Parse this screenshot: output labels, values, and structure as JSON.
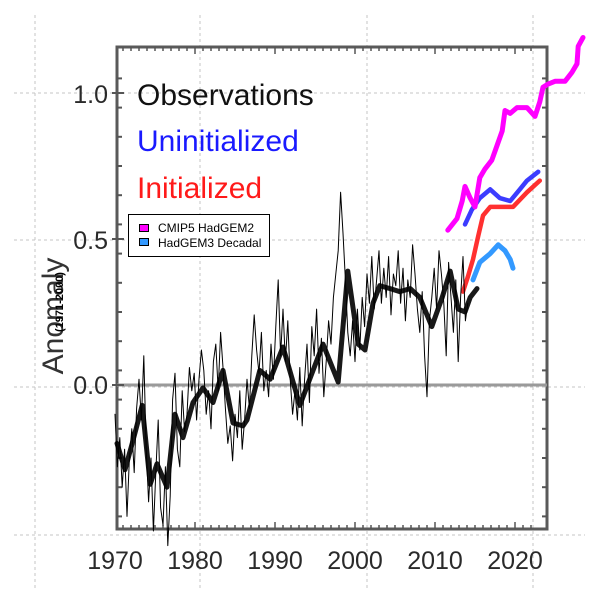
{
  "chart_data": {
    "type": "line",
    "title": "",
    "xlabel": "",
    "ylabel": "Anomaly",
    "ylabel_sub": "(1971-2000)",
    "xlim": [
      1970,
      2022.1
    ],
    "ylim": [
      -0.5,
      1.16
    ],
    "x_ticks": [
      1970,
      1980,
      1990,
      2000,
      2010,
      2020
    ],
    "x_tick_labels": [
      "1970",
      "1980",
      "1990",
      "2000",
      "2010",
      "2020"
    ],
    "y_ticks": [
      0.0,
      0.5,
      1.0
    ],
    "y_tick_labels": [
      "0.0",
      "0.5",
      "1.0"
    ],
    "zero_line": true,
    "grid": true,
    "legend_top": [
      {
        "label": "Observations",
        "color": "#000000"
      },
      {
        "label": "Uninitialized",
        "color": "#1a1aff"
      },
      {
        "label": "Initialized",
        "color": "#ff1a1a"
      }
    ],
    "legend_box": {
      "position": "upper-left",
      "entries": [
        {
          "label": "CMIP5 HadGEM2",
          "color": "#ff00ff"
        },
        {
          "label": "HadGEM3 Decadal",
          "color": "#3399ff"
        }
      ]
    },
    "series": [
      {
        "name": "Observations (monthly)",
        "color": "#000000",
        "x": [
          1970.0,
          1970.3,
          1970.6,
          1970.9,
          1971.2,
          1971.5,
          1971.8,
          1972.1,
          1972.4,
          1972.7,
          1973.0,
          1973.3,
          1973.6,
          1973.9,
          1974.2,
          1974.5,
          1974.8,
          1975.1,
          1975.4,
          1975.7,
          1976.0,
          1976.3,
          1976.6,
          1976.9,
          1977.2,
          1977.5,
          1977.8,
          1978.1,
          1978.4,
          1978.7,
          1979.0,
          1979.3,
          1979.6,
          1979.9,
          1980.2,
          1980.5,
          1980.8,
          1981.1,
          1981.4,
          1981.7,
          1982.0,
          1982.3,
          1982.6,
          1982.9,
          1983.2,
          1983.5,
          1983.8,
          1984.1,
          1984.4,
          1984.7,
          1985.0,
          1985.3,
          1985.6,
          1985.9,
          1986.2,
          1986.5,
          1986.8,
          1987.1,
          1987.4,
          1987.7,
          1988.0,
          1988.3,
          1988.6,
          1988.9,
          1989.2,
          1989.5,
          1989.8,
          1990.1,
          1990.4,
          1990.7,
          1991.0,
          1991.3,
          1991.6,
          1991.9,
          1992.2,
          1992.5,
          1992.8,
          1993.1,
          1993.4,
          1993.7,
          1994.0,
          1994.3,
          1994.6,
          1994.9,
          1995.2,
          1995.5,
          1995.8,
          1996.1,
          1996.4,
          1996.7,
          1997.0,
          1997.3,
          1997.6,
          1997.9,
          1998.2,
          1998.5,
          1998.8,
          1999.1,
          1999.4,
          1999.7,
          2000.0,
          2000.3,
          2000.6,
          2000.9,
          2001.2,
          2001.5,
          2001.8,
          2002.1,
          2002.4,
          2002.7,
          2003.0,
          2003.3,
          2003.6,
          2003.9,
          2004.2,
          2004.5,
          2004.8,
          2005.1,
          2005.4,
          2005.7,
          2006.0,
          2006.3,
          2006.6,
          2006.9,
          2007.2,
          2007.5,
          2007.8,
          2008.1,
          2008.4,
          2008.7,
          2009.0,
          2009.3,
          2009.6,
          2009.9,
          2010.2,
          2010.5,
          2010.8,
          2011.1,
          2011.4,
          2011.7,
          2012.0,
          2012.3,
          2012.6,
          2012.9,
          2013.2,
          2013.5,
          2013.8,
          2014.1
        ],
        "values": [
          -0.1,
          -0.28,
          -0.18,
          -0.35,
          -0.22,
          -0.45,
          -0.25,
          -0.15,
          -0.3,
          -0.08,
          0.02,
          -0.12,
          0.1,
          -0.22,
          -0.4,
          -0.25,
          -0.5,
          -0.3,
          -0.12,
          -0.42,
          -0.48,
          -0.28,
          -0.55,
          -0.38,
          -0.05,
          0.04,
          -0.22,
          -0.28,
          -0.02,
          -0.16,
          -0.1,
          0.06,
          -0.02,
          0.04,
          -0.12,
          0.02,
          0.12,
          0.05,
          -0.1,
          -0.02,
          -0.15,
          0.08,
          0.14,
          -0.02,
          0.18,
          0.06,
          -0.08,
          -0.2,
          -0.14,
          -0.26,
          -0.1,
          -0.18,
          -0.02,
          -0.22,
          -0.12,
          0.02,
          -0.08,
          0.1,
          0.24,
          0.12,
          0.04,
          0.18,
          -0.02,
          0.05,
          -0.04,
          0.14,
          0.02,
          0.2,
          0.36,
          0.1,
          0.26,
          0.08,
          0.22,
          0.02,
          -0.1,
          -0.02,
          -0.12,
          0.06,
          -0.14,
          0.02,
          0.14,
          -0.06,
          0.2,
          0.1,
          0.26,
          0.04,
          0.16,
          -0.04,
          0.08,
          0.22,
          0.14,
          0.3,
          0.38,
          0.46,
          0.66,
          0.52,
          0.36,
          0.18,
          0.1,
          0.22,
          0.08,
          0.26,
          0.12,
          0.3,
          0.2,
          0.38,
          0.28,
          0.44,
          0.26,
          0.36,
          0.46,
          0.28,
          0.4,
          0.3,
          0.44,
          0.24,
          0.38,
          0.34,
          0.46,
          0.28,
          0.4,
          0.22,
          0.36,
          0.3,
          0.48,
          0.38,
          0.26,
          0.18,
          0.32,
          0.1,
          -0.04,
          0.22,
          0.3,
          0.4,
          0.26,
          0.46,
          0.38,
          0.28,
          0.1,
          0.42,
          0.3,
          0.18,
          0.36,
          0.08,
          0.3,
          0.44,
          0.22,
          0.28
        ]
      },
      {
        "name": "Observations (smoothed)",
        "color": "#000000",
        "x": [
          1970.25,
          1971.25,
          1972.25,
          1973.4,
          1974.4,
          1975.25,
          1976.5,
          1977.5,
          1978.5,
          1979.75,
          1981.0,
          1982.25,
          1983.5,
          1984.75,
          1986.0,
          1986.5,
          1988.1,
          1989.4,
          1991.0,
          1993.1,
          1996.0,
          1997.9,
          1999.1,
          2000.4,
          2001.25,
          2002.25,
          2003.1,
          2004.4,
          2005.6,
          2006.9,
          2008.1,
          2009.6,
          2010.9,
          2011.9,
          2012.9,
          2013.75,
          2014.4,
          2015.25
        ],
        "values": [
          -0.2,
          -0.29,
          -0.19,
          -0.07,
          -0.34,
          -0.27,
          -0.35,
          -0.1,
          -0.18,
          -0.06,
          -0.01,
          -0.06,
          0.05,
          -0.13,
          -0.14,
          -0.12,
          0.05,
          0.02,
          0.13,
          -0.07,
          0.14,
          0.01,
          0.39,
          0.14,
          0.12,
          0.28,
          0.34,
          0.33,
          0.32,
          0.33,
          0.3,
          0.2,
          0.3,
          0.39,
          0.26,
          0.25,
          0.3,
          0.33
        ]
      },
      {
        "name": "Uninitialized",
        "color": "#1a1aff",
        "x": [
          2013.75,
          2014.6,
          2015.6,
          2016.9,
          2018.1,
          2019.4,
          2020.6,
          2021.5,
          2022.9
        ],
        "values": [
          0.55,
          0.6,
          0.64,
          0.67,
          0.64,
          0.63,
          0.67,
          0.7,
          0.73
        ]
      },
      {
        "name": "Initialized",
        "color": "#ff1a1a",
        "x": [
          2013.5,
          2014.1,
          2014.75,
          2015.4,
          2016.0,
          2016.9,
          2018.5,
          2019.75,
          2021.5,
          2023.1
        ],
        "values": [
          0.32,
          0.37,
          0.43,
          0.51,
          0.58,
          0.61,
          0.61,
          0.61,
          0.66,
          0.7
        ]
      },
      {
        "name": "CMIP5 HadGEM2",
        "color": "#ff00ff",
        "x": [
          2011.6,
          2012.75,
          2013.4,
          2013.75,
          2014.4,
          2015.0,
          2015.6,
          2016.25,
          2017.1,
          2017.75,
          2018.4,
          2018.75,
          2019.4,
          2020.25,
          2021.5,
          2022.5,
          2023.1,
          2023.5,
          2024.1,
          2025.0,
          2026.25,
          2027.1,
          2027.75,
          2027.9,
          2028.5
        ],
        "values": [
          0.53,
          0.57,
          0.63,
          0.68,
          0.64,
          0.61,
          0.71,
          0.74,
          0.77,
          0.82,
          0.87,
          0.94,
          0.93,
          0.95,
          0.95,
          0.92,
          0.97,
          1.02,
          1.03,
          1.04,
          1.04,
          1.07,
          1.1,
          1.16,
          1.19
        ]
      },
      {
        "name": "HadGEM3 Decadal",
        "color": "#3399ff",
        "x": [
          2014.75,
          2015.6,
          2016.9,
          2017.9,
          2018.75,
          2019.4,
          2019.75
        ],
        "values": [
          0.36,
          0.42,
          0.45,
          0.48,
          0.46,
          0.43,
          0.4
        ]
      }
    ]
  }
}
